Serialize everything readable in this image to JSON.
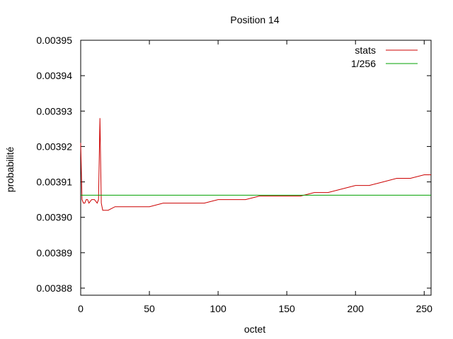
{
  "chart_data": {
    "type": "line",
    "title": "Position 14",
    "xlabel": "octet",
    "ylabel": "probabilité",
    "xlim": [
      0,
      255
    ],
    "ylim": [
      0.003878,
      0.00395
    ],
    "xticks": [
      0,
      50,
      100,
      150,
      200,
      250
    ],
    "xtick_labels": [
      "0",
      "50",
      "100",
      "150",
      "200",
      "250"
    ],
    "yticks": [
      0.00388,
      0.00389,
      0.0039,
      0.00391,
      0.00392,
      0.00393,
      0.00394,
      0.00395
    ],
    "ytick_labels": [
      "0.00388",
      "0.00389",
      "0.00390",
      "0.00391",
      "0.00392",
      "0.00393",
      "0.00394",
      "0.00395"
    ],
    "grid": false,
    "legend_position": "top-right",
    "series": [
      {
        "name": "stats",
        "color": "#cc0000",
        "x": [
          0,
          1,
          2,
          3,
          4,
          5,
          6,
          8,
          10,
          12,
          13,
          14,
          15,
          16,
          18,
          20,
          25,
          30,
          40,
          50,
          60,
          70,
          80,
          90,
          100,
          110,
          120,
          130,
          140,
          150,
          160,
          170,
          180,
          190,
          200,
          210,
          220,
          230,
          240,
          250,
          255
        ],
        "y": [
          0.003921,
          0.003905,
          0.003904,
          0.003904,
          0.003905,
          0.003905,
          0.003904,
          0.003905,
          0.003905,
          0.003904,
          0.003905,
          0.003928,
          0.003904,
          0.003902,
          0.003902,
          0.003902,
          0.003903,
          0.003903,
          0.003903,
          0.003903,
          0.003904,
          0.003904,
          0.003904,
          0.003904,
          0.003905,
          0.003905,
          0.003905,
          0.003906,
          0.003906,
          0.003906,
          0.003906,
          0.003907,
          0.003907,
          0.003908,
          0.003909,
          0.003909,
          0.00391,
          0.003911,
          0.003911,
          0.003912,
          0.003912
        ]
      },
      {
        "name": "1/256",
        "color": "#00a000",
        "x": [
          0,
          255
        ],
        "y": [
          0.00390625,
          0.00390625
        ]
      }
    ]
  }
}
